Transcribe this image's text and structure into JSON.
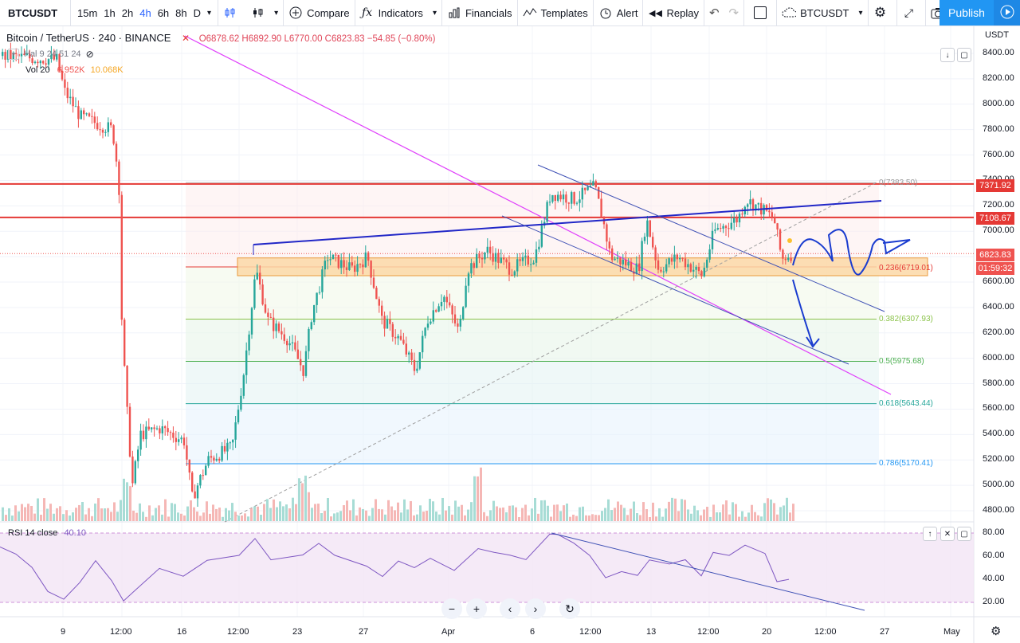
{
  "toolbar": {
    "symbol": "BTCUSDT",
    "timeframes": [
      "15m",
      "1h",
      "2h",
      "4h",
      "6h",
      "8h",
      "D"
    ],
    "active_timeframe": "4h",
    "compare": "Compare",
    "indicators": "Indicators",
    "financials": "Financials",
    "templates": "Templates",
    "alert": "Alert",
    "replay": "Replay",
    "symbol_right": "BTCUSDT",
    "publish": "Publish"
  },
  "legend": {
    "title": "Bitcoin / TetherUS · 240 · BINANCE",
    "ohlc": "O6878.62 H6892.90 L6770.00 C6823.83 −54.85 (−0.80%)",
    "line2": "Hal 9 24 51 24",
    "vol_label": "Vol 20",
    "vol_values": "6.952K 10.068K",
    "vol_v1": "6.952K",
    "vol_v2": "10.068K",
    "rsi_label": "RSI 14 close",
    "rsi_value": "40.10"
  },
  "price_axis": {
    "currency": "USDT",
    "ticks": [
      "8400.00",
      "8200.00",
      "8000.00",
      "7800.00",
      "7600.00",
      "7400.00",
      "7200.00",
      "7000.00",
      "6800.00",
      "6600.00",
      "6400.00",
      "6200.00",
      "6000.00",
      "5800.00",
      "5600.00",
      "5400.00",
      "5200.00",
      "5000.00",
      "4800.00"
    ],
    "tag_red1": "7371.92",
    "tag_red2": "7108.67",
    "tag_last": "6823.83",
    "tag_timer": "01:59:32"
  },
  "rsi_axis": {
    "ticks": [
      "80.00",
      "60.00",
      "40.00",
      "20.00"
    ]
  },
  "fib": {
    "l0": "0(7383.50)",
    "l236": "0.236(6719.01)",
    "l382": "0.382(6307.93)",
    "l5": "0.5(5975.68)",
    "l618": "0.618(5643.44)",
    "l786": "0.786(5170.41)"
  },
  "time_axis": [
    "9",
    "12:00",
    "16",
    "12:00",
    "23",
    "27",
    "Apr",
    "6",
    "12:00",
    "13",
    "12:00",
    "20",
    "12:00",
    "27",
    "May"
  ],
  "colors": {
    "up": "#26a69a",
    "down": "#ef5350",
    "red_line": "#e53935",
    "blue_line": "#2127c7",
    "fib_236": "#e53935",
    "fib_382": "#8bc34a",
    "fib_5": "#4caf50",
    "fib_618": "#26a69a",
    "fib_786": "#2196f3",
    "rsi": "#7e57c2",
    "publish": "#2196f3"
  }
}
